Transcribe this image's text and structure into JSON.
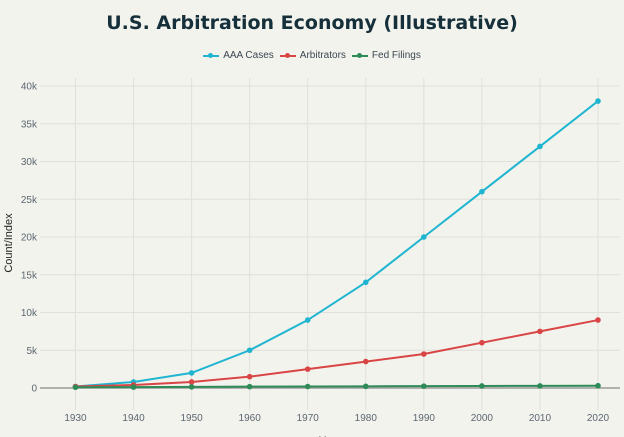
{
  "chart_data": {
    "type": "line",
    "title": "U.S. Arbitration Economy (Illustrative)",
    "xlabel": "Year",
    "ylabel": "Count/Index",
    "x": [
      1930,
      1940,
      1950,
      1960,
      1970,
      1980,
      1990,
      2000,
      2010,
      2020
    ],
    "xticks": [
      "1930",
      "1940",
      "1950",
      "1960",
      "1970",
      "1980",
      "1990",
      "2000",
      "2010",
      "2020"
    ],
    "yticks": [
      0,
      5000,
      10000,
      15000,
      20000,
      25000,
      30000,
      35000,
      40000
    ],
    "ytick_labels": [
      "0",
      "5k",
      "10k",
      "15k",
      "20k",
      "25k",
      "30k",
      "35k",
      "40k"
    ],
    "ylim": [
      -2500,
      40500
    ],
    "xlim": [
      1925,
      2023
    ],
    "grid": true,
    "legend_position": "top-center",
    "series": [
      {
        "name": "AAA Cases",
        "color": "#1fb5d0",
        "values": [
          200,
          800,
          2000,
          5000,
          9000,
          14000,
          20000,
          26000,
          32000,
          38000
        ]
      },
      {
        "name": "Arbitrators",
        "color": "#d94545",
        "values": [
          200,
          400,
          800,
          1500,
          2500,
          3500,
          4500,
          6000,
          7500,
          9000
        ]
      },
      {
        "name": "Fed Filings",
        "color": "#2e8b57",
        "values": [
          100,
          120,
          150,
          180,
          200,
          220,
          250,
          270,
          280,
          300
        ]
      }
    ]
  }
}
